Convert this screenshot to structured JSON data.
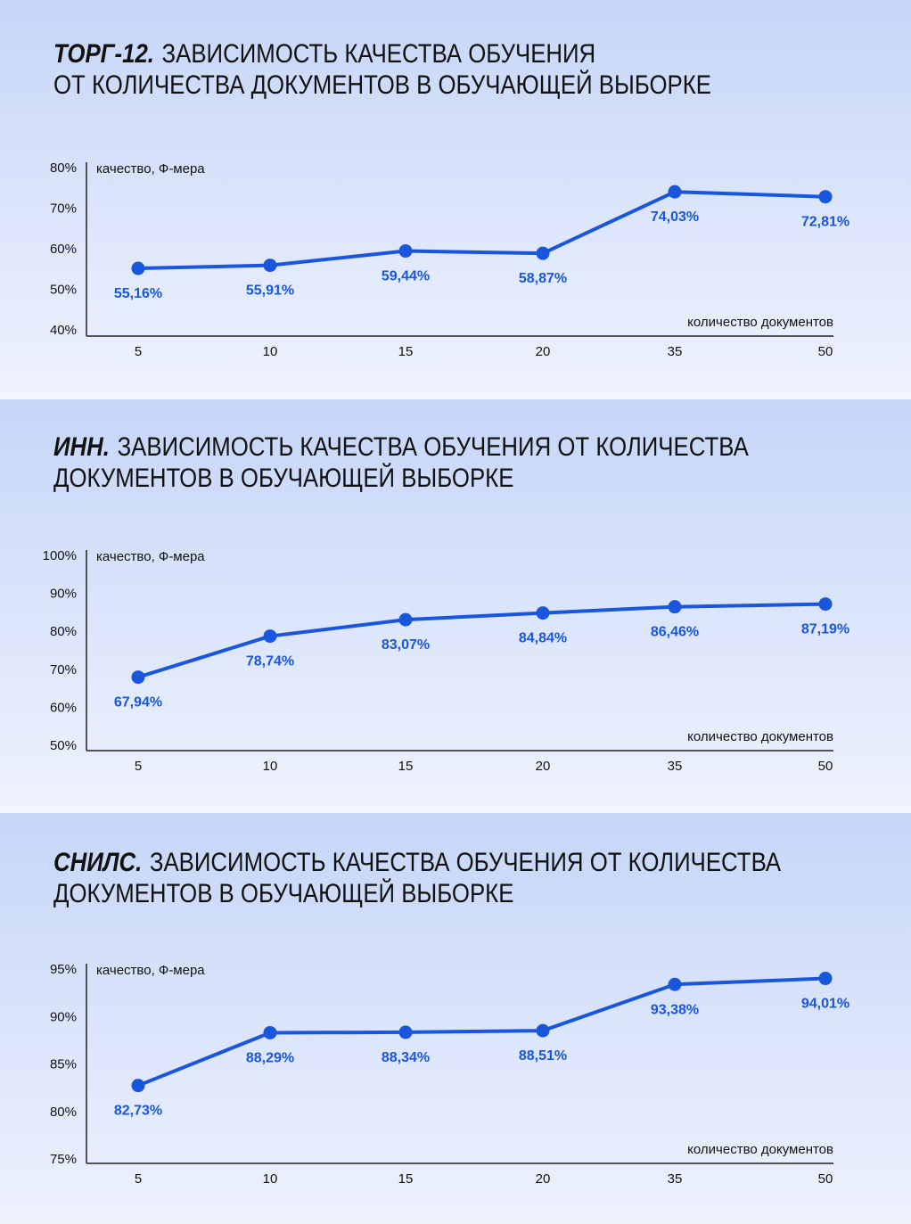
{
  "chart_data": [
    {
      "type": "line",
      "title_prefix": "ТОРГ-12.",
      "title_lines": [
        "ЗАВИСИМОСТЬ КАЧЕСТВА ОБУЧЕНИЯ",
        "ОТ КОЛИЧЕСТВА ДОКУМЕНТОВ В ОБУЧАЮЩЕЙ ВЫБОРКЕ"
      ],
      "y_label": "качество, Ф-мера",
      "x_label": "количество документов",
      "categories": [
        "5",
        "10",
        "15",
        "20",
        "35",
        "50"
      ],
      "values": [
        55.16,
        55.91,
        59.44,
        58.87,
        74.03,
        72.81
      ],
      "value_labels": [
        "55,16%",
        "55,91%",
        "59,44%",
        "58,87%",
        "74,03%",
        "72,81%"
      ],
      "color": "#1a56db",
      "ylim": [
        40,
        80
      ],
      "yticks": [
        {
          "value": 40,
          "label": "40%"
        },
        {
          "value": 50,
          "label": "50%"
        },
        {
          "value": 60,
          "label": "60%"
        },
        {
          "value": 70,
          "label": "70%"
        },
        {
          "value": 80,
          "label": "80%"
        }
      ]
    },
    {
      "type": "line",
      "title_prefix": "ИНН.",
      "title_lines": [
        "ЗАВИСИМОСТЬ КАЧЕСТВА ОБУЧЕНИЯ ОТ КОЛИЧЕСТВА",
        "ДОКУМЕНТОВ В ОБУЧАЮЩЕЙ ВЫБОРКЕ"
      ],
      "y_label": "качество, Ф-мера",
      "x_label": "количество документов",
      "categories": [
        "5",
        "10",
        "15",
        "20",
        "35",
        "50"
      ],
      "values": [
        67.94,
        78.74,
        83.07,
        84.84,
        86.46,
        87.19
      ],
      "value_labels": [
        "67,94%",
        "78,74%",
        "83,07%",
        "84,84%",
        "86,46%",
        "87,19%"
      ],
      "color": "#1a56db",
      "ylim": [
        50,
        100
      ],
      "yticks": [
        {
          "value": 50,
          "label": "50%"
        },
        {
          "value": 60,
          "label": "60%"
        },
        {
          "value": 70,
          "label": "70%"
        },
        {
          "value": 80,
          "label": "80%"
        },
        {
          "value": 90,
          "label": "90%"
        },
        {
          "value": 100,
          "label": "100%"
        }
      ]
    },
    {
      "type": "line",
      "title_prefix": "СНИЛС.",
      "title_lines": [
        "ЗАВИСИМОСТЬ КАЧЕСТВА ОБУЧЕНИЯ ОТ КОЛИЧЕСТВА",
        "ДОКУМЕНТОВ В ОБУЧАЮЩЕЙ ВЫБОРКЕ"
      ],
      "y_label": "качество, Ф-мера",
      "x_label": "количество документов",
      "categories": [
        "5",
        "10",
        "15",
        "20",
        "35",
        "50"
      ],
      "values": [
        82.73,
        88.29,
        88.34,
        88.51,
        93.38,
        94.01
      ],
      "value_labels": [
        "82,73%",
        "88,29%",
        "88,34%",
        "88,51%",
        "93,38%",
        "94,01%"
      ],
      "color": "#1a56db",
      "ylim": [
        75,
        95
      ],
      "yticks": [
        {
          "value": 75,
          "label": "75%"
        },
        {
          "value": 80,
          "label": "80%"
        },
        {
          "value": 85,
          "label": "85%"
        },
        {
          "value": 90,
          "label": "90%"
        },
        {
          "value": 95,
          "label": "95%"
        }
      ]
    }
  ]
}
